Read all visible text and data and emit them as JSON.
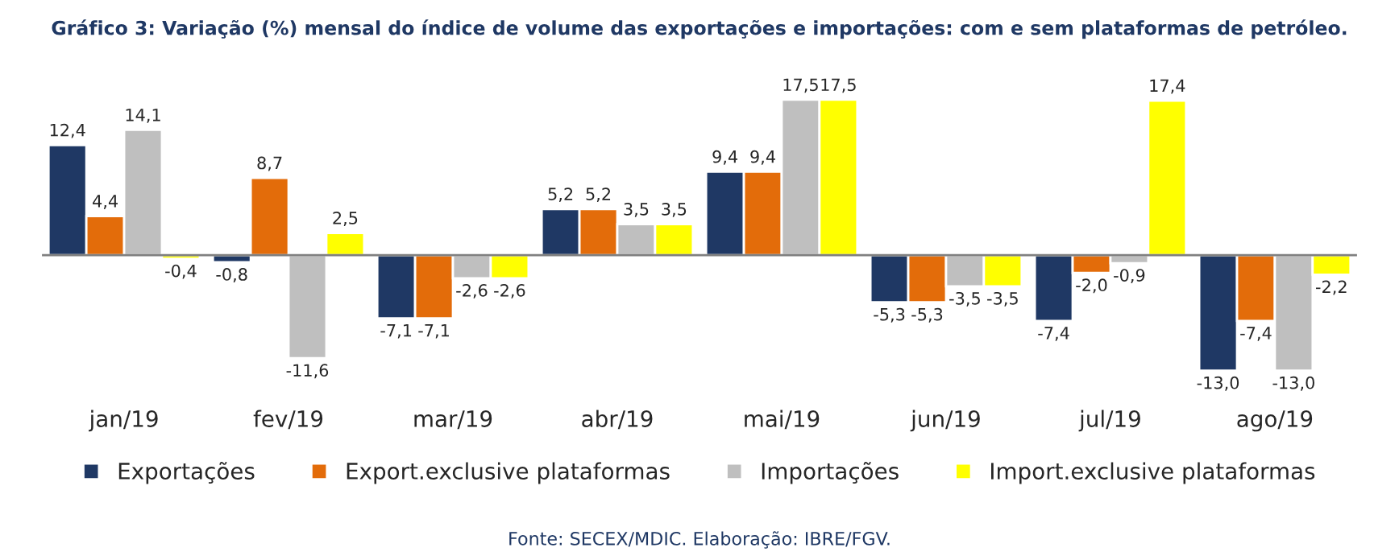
{
  "chart_data": {
    "type": "bar",
    "title": "Gráfico 3: Variação (%) mensal do índice de volume das exportações e importações: com e sem plataformas de petróleo.",
    "categories": [
      "jan/19",
      "fev/19",
      "mar/19",
      "abr/19",
      "mai/19",
      "jun/19",
      "jul/19",
      "ago/19"
    ],
    "series": [
      {
        "name": "Exportações",
        "color": "#1f3864",
        "values": [
          12.4,
          -0.8,
          -7.1,
          5.2,
          9.4,
          -5.3,
          -7.4,
          -13.0
        ],
        "value_labels": [
          "12,4",
          "-0,8",
          "-7,1",
          "5,2",
          "9,4",
          "-5,3",
          "-7,4",
          "-13,0"
        ]
      },
      {
        "name": "Export.exclusive plataformas",
        "color": "#e36c0a",
        "values": [
          4.4,
          8.7,
          -7.1,
          5.2,
          9.4,
          -5.3,
          -2.0,
          -7.4
        ],
        "value_labels": [
          "4,4",
          "8,7",
          "-7,1",
          "5,2",
          "9,4",
          "-5,3",
          "-2,0",
          "-7,4"
        ]
      },
      {
        "name": "Importações",
        "color": "#bfbfbf",
        "values": [
          14.1,
          -11.6,
          -2.6,
          3.5,
          17.5,
          -3.5,
          -0.9,
          -13.0
        ],
        "value_labels": [
          "14,1",
          "-11,6",
          "-2,6",
          "3,5",
          "17,5",
          "-3,5",
          "-0,9",
          "-13,0"
        ]
      },
      {
        "name": "Import.exclusive plataformas",
        "color": "#ffff00",
        "values": [
          -0.4,
          2.5,
          -2.6,
          3.5,
          17.5,
          -3.5,
          17.4,
          -2.2
        ],
        "value_labels": [
          "-0,4",
          "2,5",
          "-2,6",
          "3,5",
          "17,5",
          "-3,5",
          "17,4",
          "-2,2"
        ]
      }
    ],
    "annotations": [
      "Fonte: SECEX/MDIC. Elaboração: IBRE/FGV."
    ],
    "legend": "bottom"
  }
}
